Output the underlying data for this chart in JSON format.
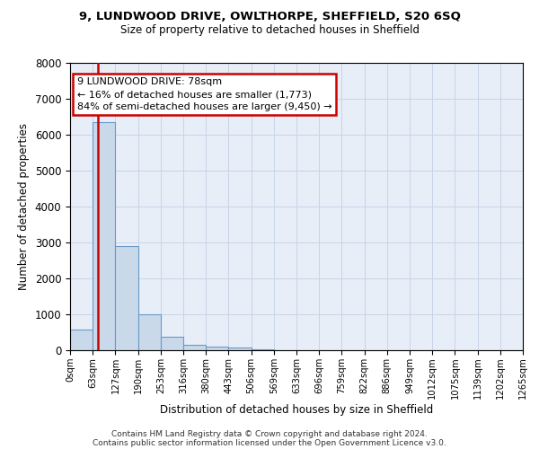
{
  "title1": "9, LUNDWOOD DRIVE, OWLTHORPE, SHEFFIELD, S20 6SQ",
  "title2": "Size of property relative to detached houses in Sheffield",
  "xlabel": "Distribution of detached houses by size in Sheffield",
  "ylabel": "Number of detached properties",
  "bar_values": [
    580,
    6350,
    2900,
    1000,
    380,
    160,
    110,
    70,
    30,
    0,
    0,
    0,
    0,
    0,
    0,
    0,
    0,
    0,
    0,
    0
  ],
  "bin_labels": [
    "0sqm",
    "63sqm",
    "127sqm",
    "190sqm",
    "253sqm",
    "316sqm",
    "380sqm",
    "443sqm",
    "506sqm",
    "569sqm",
    "633sqm",
    "696sqm",
    "759sqm",
    "822sqm",
    "886sqm",
    "949sqm",
    "1012sqm",
    "1075sqm",
    "1139sqm",
    "1202sqm",
    "1265sqm"
  ],
  "bar_color": "#c9d9ea",
  "bar_edge_color": "#6899c8",
  "annotation_text": "9 LUNDWOOD DRIVE: 78sqm\n← 16% of detached houses are smaller (1,773)\n84% of semi-detached houses are larger (9,450) →",
  "annotation_box_color": "white",
  "annotation_box_edge_color": "#cc0000",
  "vline_color": "#cc0000",
  "ylim": [
    0,
    8000
  ],
  "yticks": [
    0,
    1000,
    2000,
    3000,
    4000,
    5000,
    6000,
    7000,
    8000
  ],
  "grid_color": "#c8d4e8",
  "bg_color": "#e8eef8",
  "footer1": "Contains HM Land Registry data © Crown copyright and database right 2024.",
  "footer2": "Contains public sector information licensed under the Open Government Licence v3.0."
}
